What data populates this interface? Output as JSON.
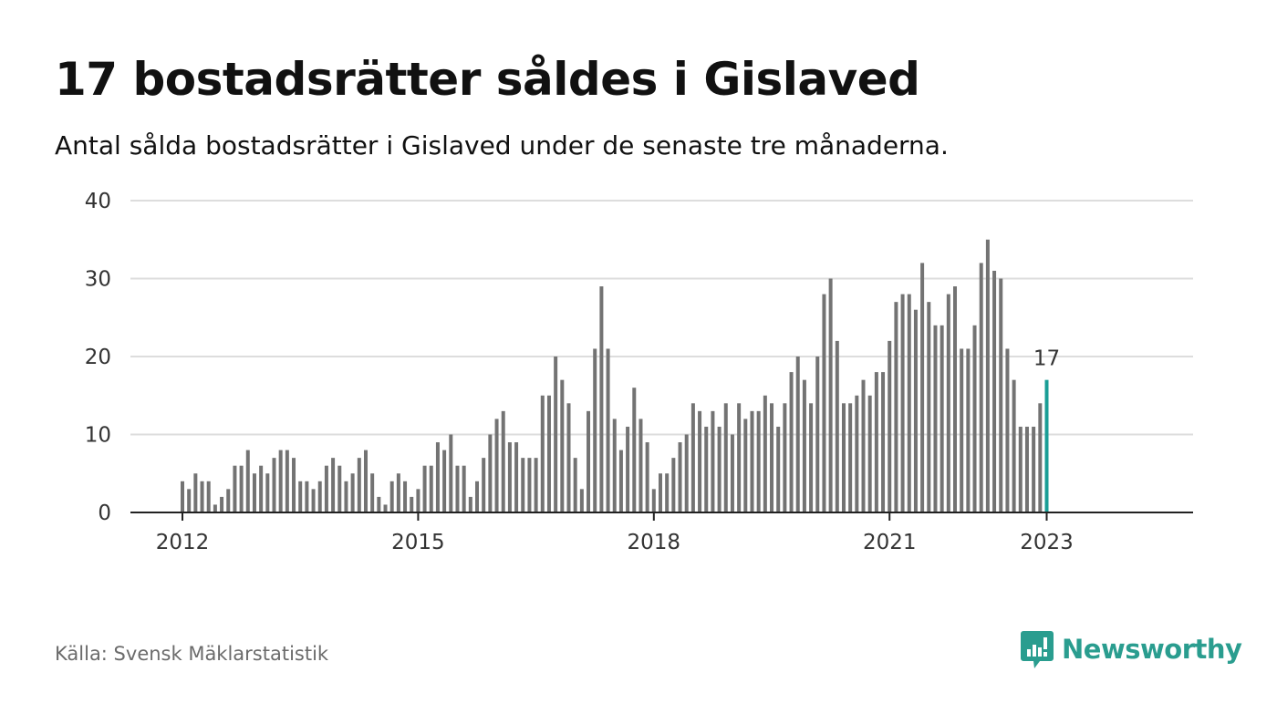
{
  "title": "17 bostadsrätter såldes i Gislaved",
  "subtitle": "Antal sålda bostadsrätter i Gislaved under de senaste tre månaderna.",
  "source": "Källa: Svensk Mäklarstatistik",
  "brand": {
    "name": "Newsworthy",
    "color": "#2a9d8f",
    "icon": "newsworthy-logo-icon"
  },
  "colors": {
    "bar": "#737373",
    "highlight": "#1a9e96",
    "grid": "#dddddd",
    "axis": "#222222"
  },
  "chart_data": {
    "type": "bar",
    "title": "17 bostadsrätter såldes i Gislaved",
    "subtitle": "Antal sålda bostadsrätter i Gislaved under de senaste tre månaderna.",
    "xlabel": "",
    "ylabel": "",
    "x_start": "2012-01",
    "x_end": "2023-01",
    "interval": "month",
    "ylim": [
      0,
      40
    ],
    "yticks": [
      0,
      10,
      20,
      30,
      40
    ],
    "xticks": [
      "2012",
      "2015",
      "2018",
      "2021",
      "2023"
    ],
    "grid": true,
    "highlight": {
      "x": "2023-01",
      "value": 17,
      "label": "17"
    },
    "values": [
      4,
      3,
      5,
      4,
      4,
      1,
      2,
      3,
      6,
      6,
      8,
      5,
      6,
      5,
      7,
      8,
      8,
      7,
      4,
      4,
      3,
      4,
      6,
      7,
      6,
      4,
      5,
      7,
      8,
      5,
      2,
      1,
      4,
      5,
      4,
      2,
      3,
      6,
      6,
      9,
      8,
      10,
      6,
      6,
      2,
      4,
      7,
      10,
      12,
      13,
      9,
      9,
      7,
      7,
      7,
      15,
      15,
      20,
      17,
      14,
      7,
      3,
      13,
      21,
      29,
      21,
      12,
      8,
      11,
      16,
      12,
      9,
      3,
      5,
      5,
      7,
      9,
      10,
      14,
      13,
      11,
      13,
      11,
      14,
      10,
      14,
      12,
      13,
      13,
      15,
      14,
      11,
      14,
      18,
      20,
      17,
      14,
      20,
      28,
      30,
      22,
      14,
      14,
      15,
      17,
      15,
      18,
      18,
      22,
      27,
      28,
      28,
      26,
      32,
      27,
      24,
      24,
      28,
      29,
      21,
      21,
      24,
      32,
      35,
      31,
      30,
      21,
      17,
      11,
      11,
      11,
      14,
      17
    ]
  }
}
